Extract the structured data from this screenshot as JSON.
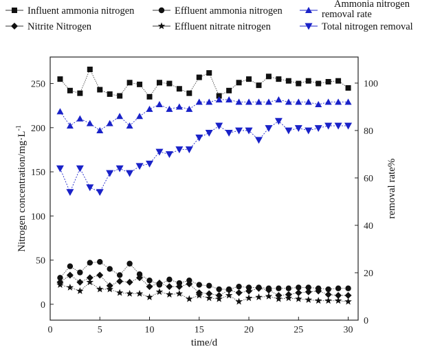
{
  "chart_data": {
    "type": "line",
    "x": [
      1,
      2,
      3,
      4,
      5,
      6,
      7,
      8,
      9,
      10,
      11,
      12,
      13,
      14,
      15,
      16,
      17,
      18,
      19,
      20,
      21,
      22,
      23,
      24,
      25,
      26,
      27,
      28,
      29,
      30
    ],
    "xlabel": "time/d",
    "ylabel_left": "Nitrogen concentration/mg·L",
    "ylabel_left_superscript": "-1",
    "ylabel_right": "removal rate%",
    "xlim": [
      0,
      31
    ],
    "ylim_left": [
      -18,
      280
    ],
    "ylim_right": [
      0,
      111
    ],
    "x_ticks": [
      0,
      5,
      10,
      15,
      20,
      25,
      30
    ],
    "y_left_ticks": [
      0,
      50,
      100,
      150,
      200,
      250
    ],
    "y_right_ticks": [
      0,
      20,
      40,
      60,
      80,
      100
    ],
    "grid": false,
    "legend_placement": "top",
    "series": [
      {
        "name": "Influent ammonia nitrogen",
        "axis": "left",
        "marker": "square",
        "color": "#111111",
        "values": [
          255,
          242,
          239,
          266,
          243,
          238,
          236,
          251,
          249,
          235,
          251,
          250,
          244,
          239,
          257,
          262,
          236,
          242,
          251,
          255,
          248,
          258,
          255,
          253,
          250,
          253,
          250,
          252,
          253,
          245
        ]
      },
      {
        "name": "Effluent ammonia nitrogen",
        "axis": "left",
        "marker": "circle",
        "color": "#111111",
        "values": [
          30,
          43,
          36,
          47,
          48,
          40,
          33,
          46,
          34,
          27,
          22,
          28,
          24,
          27,
          22,
          21,
          17,
          17,
          20,
          19,
          19,
          18,
          18,
          18,
          19,
          19,
          18,
          17,
          18,
          18
        ]
      },
      {
        "name": "Ammonia nitrogen removal rate",
        "legend_lines": [
          "Ammonia nitrogen",
          "removal rate"
        ],
        "axis": "right",
        "marker": "triangle-up",
        "color": "#1a22c8",
        "values": [
          88,
          82,
          85,
          83,
          80,
          83,
          86,
          82,
          86,
          89,
          91,
          89,
          90,
          89,
          92,
          92,
          93,
          93,
          92,
          92,
          92,
          92,
          93,
          92,
          92,
          92,
          91,
          92,
          92,
          92
        ]
      },
      {
        "name": "Nitrite Nitrogen",
        "axis": "left",
        "marker": "diamond",
        "color": "#111111",
        "values": [
          25,
          33,
          25,
          30,
          33,
          21,
          26,
          25,
          30,
          20,
          24,
          20,
          20,
          23,
          13,
          12,
          10,
          16,
          13,
          15,
          18,
          16,
          10,
          11,
          13,
          14,
          15,
          11,
          10,
          10
        ]
      },
      {
        "name": "Effluent nitrate nitrogen",
        "axis": "left",
        "marker": "star",
        "color": "#111111",
        "values": [
          22,
          19,
          15,
          25,
          17,
          17,
          13,
          12,
          12,
          8,
          14,
          11,
          12,
          6,
          10,
          7,
          6,
          10,
          3,
          7,
          8,
          9,
          6,
          7,
          6,
          5,
          4,
          4,
          4,
          3
        ]
      },
      {
        "name": "Total nitrogen removal",
        "axis": "right",
        "marker": "triangle-down",
        "color": "#1a22c8",
        "values": [
          64,
          54,
          64,
          56,
          54,
          62,
          64,
          62,
          65,
          66,
          71,
          70,
          72,
          72,
          77,
          79,
          82,
          79,
          80,
          80,
          76,
          81,
          84,
          80,
          81,
          80,
          81,
          82,
          82,
          82
        ]
      }
    ]
  }
}
